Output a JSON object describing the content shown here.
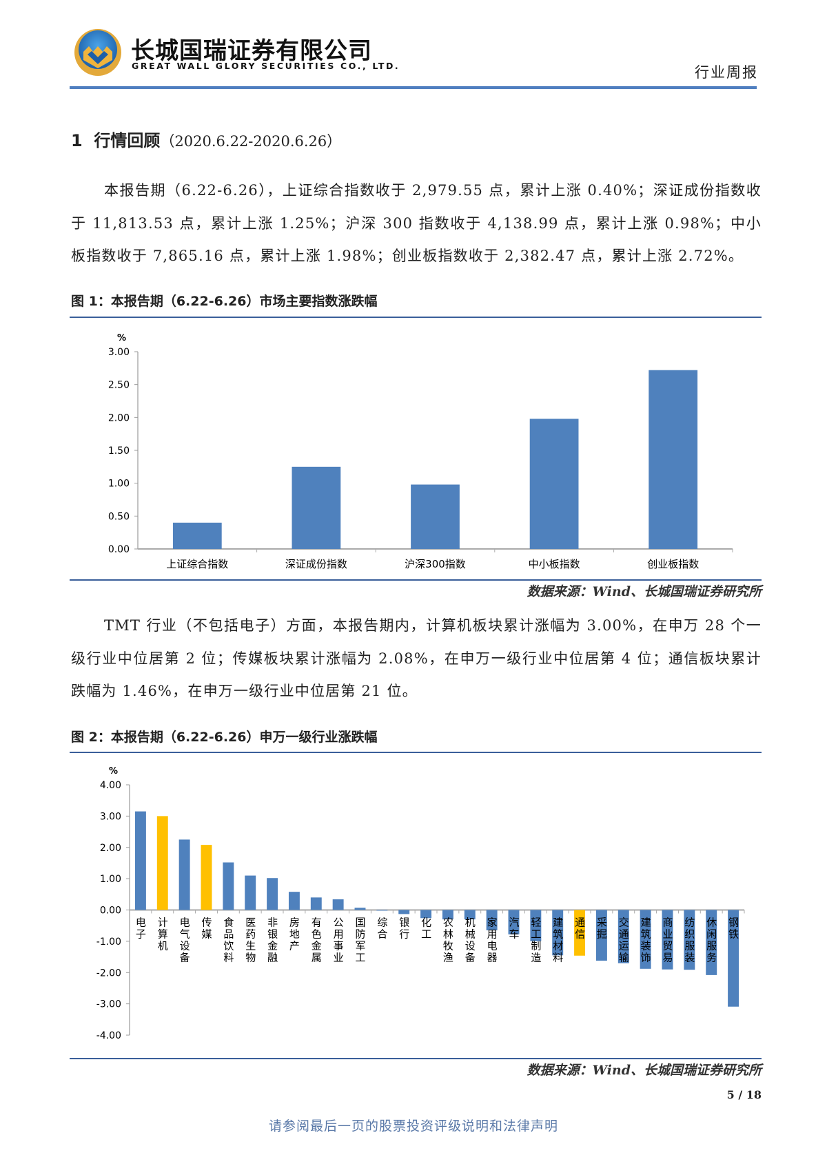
{
  "header": {
    "company_cn": "长城国瑞证券有限公司",
    "company_en": "GREAT WALL GLORY SECURITIES CO., LTD.",
    "report_type": "行业周报"
  },
  "section": {
    "number": "1",
    "title": "行情回顾",
    "range": "（2020.6.22-2020.6.26）"
  },
  "paragraph1": "本报告期（6.22-6.26），上证综合指数收于 2,979.55 点，累计上涨 0.40%；深证成份指数收于 11,813.53 点，累计上涨 1.25%；沪深 300 指数收于 4,138.99 点，累计上涨 0.98%；中小板指数收于 7,865.16 点，累计上涨 1.98%；创业板指数收于 2,382.47 点，累计上涨 2.72%。",
  "paragraph2": "TMT 行业（不包括电子）方面，本报告期内，计算机板块累计涨幅为 3.00%，在申万 28 个一级行业中位居第 2 位；传媒板块累计涨幅为 2.08%，在申万一级行业中位居第 4 位；通信板块累计跌幅为 1.46%，在申万一级行业中位居第 21 位。",
  "figure1": {
    "title": "图 1：本报告期（6.22-6.26）市场主要指数涨跌幅",
    "source": "数据来源：Wind、长城国瑞证券研究所"
  },
  "figure2": {
    "title": "图 2：本报告期（6.22-6.26）申万一级行业涨跌幅",
    "source": "数据来源：Wind、长城国瑞证券研究所"
  },
  "page_number": "5 / 18",
  "footer": "请参阅最后一页的股票投资评级说明和法律声明",
  "colors": {
    "bar": "#4f81bd",
    "highlight": "#ffc000",
    "rule": "#4f7fc0"
  },
  "chart_data": [
    {
      "type": "bar",
      "title": "",
      "ylabel": "%",
      "ylim": [
        0,
        3
      ],
      "yticks": [
        "0.00",
        "0.50",
        "1.00",
        "1.50",
        "2.00",
        "2.50",
        "3.00"
      ],
      "categories": [
        "上证综合指数",
        "深证成份指数",
        "沪深300指数",
        "中小板指数",
        "创业板指数"
      ],
      "values": [
        0.4,
        1.25,
        0.98,
        1.98,
        2.72
      ]
    },
    {
      "type": "bar",
      "title": "",
      "ylabel": "%",
      "ylim": [
        -4,
        4
      ],
      "yticks": [
        "-4.00",
        "-3.00",
        "-2.00",
        "-1.00",
        "0.00",
        "1.00",
        "2.00",
        "3.00",
        "4.00"
      ],
      "categories": [
        "电子",
        "计算机",
        "电气设备",
        "传媒",
        "食品饮料",
        "医药生物",
        "非银金融",
        "房地产",
        "有色金属",
        "公用事业",
        "国防军工",
        "综合",
        "银行",
        "化工",
        "农林牧渔",
        "机械设备",
        "家用电器",
        "汽车",
        "轻工制造",
        "建筑材料",
        "通信",
        "采掘",
        "交通运输",
        "建筑装饰",
        "商业贸易",
        "纺织服装",
        "休闲服务",
        "钢铁"
      ],
      "values": [
        3.15,
        3.0,
        2.25,
        2.08,
        1.52,
        1.1,
        1.02,
        0.58,
        0.4,
        0.34,
        0.07,
        -0.02,
        -0.13,
        -0.26,
        -0.3,
        -0.3,
        -0.65,
        -0.78,
        -1.0,
        -1.45,
        -1.46,
        -1.62,
        -1.7,
        -1.88,
        -1.9,
        -1.91,
        -2.08,
        -3.09
      ],
      "highlighted": [
        "计算机",
        "传媒",
        "通信"
      ]
    }
  ]
}
